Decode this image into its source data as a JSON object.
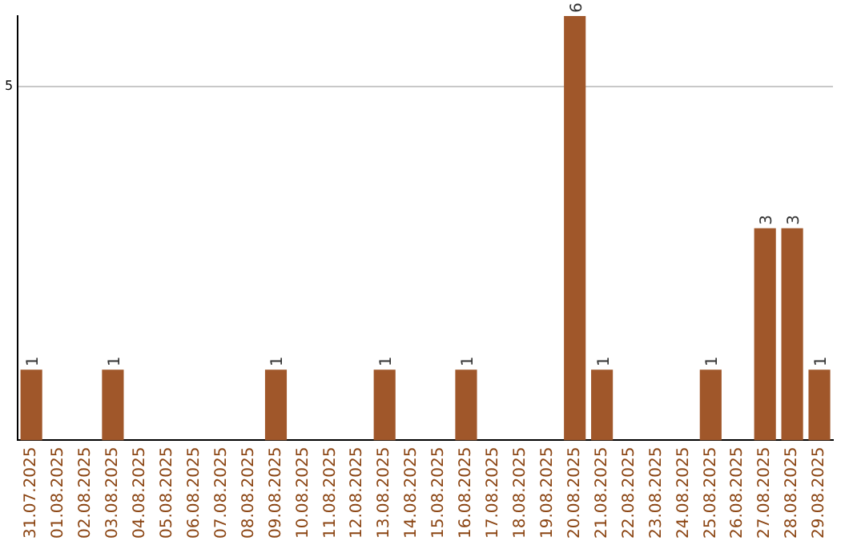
{
  "chart_data": {
    "type": "bar",
    "categories": [
      "31.07.2025",
      "01.08.2025",
      "02.08.2025",
      "03.08.2025",
      "04.08.2025",
      "05.08.2025",
      "06.08.2025",
      "07.08.2025",
      "08.08.2025",
      "09.08.2025",
      "10.08.2025",
      "11.08.2025",
      "12.08.2025",
      "13.08.2025",
      "14.08.2025",
      "15.08.2025",
      "16.08.2025",
      "17.08.2025",
      "18.08.2025",
      "19.08.2025",
      "20.08.2025",
      "21.08.2025",
      "22.08.2025",
      "23.08.2025",
      "24.08.2025",
      "25.08.2025",
      "26.08.2025",
      "27.08.2025",
      "28.08.2025",
      "29.08.2025"
    ],
    "values": [
      1,
      0,
      0,
      1,
      0,
      0,
      0,
      0,
      0,
      1,
      0,
      0,
      0,
      1,
      0,
      0,
      1,
      0,
      0,
      0,
      6,
      1,
      0,
      0,
      0,
      1,
      0,
      3,
      3,
      1
    ],
    "value_labels": [
      "1",
      null,
      null,
      "1",
      null,
      null,
      null,
      null,
      null,
      "1",
      null,
      null,
      null,
      "1",
      null,
      null,
      "1",
      null,
      null,
      null,
      "6",
      "1",
      null,
      null,
      null,
      "1",
      null,
      "3",
      "3",
      "1"
    ],
    "color": "#a0572a",
    "ylim": [
      0,
      6
    ],
    "yticks": [
      5
    ],
    "grid": "y",
    "legend": false
  }
}
